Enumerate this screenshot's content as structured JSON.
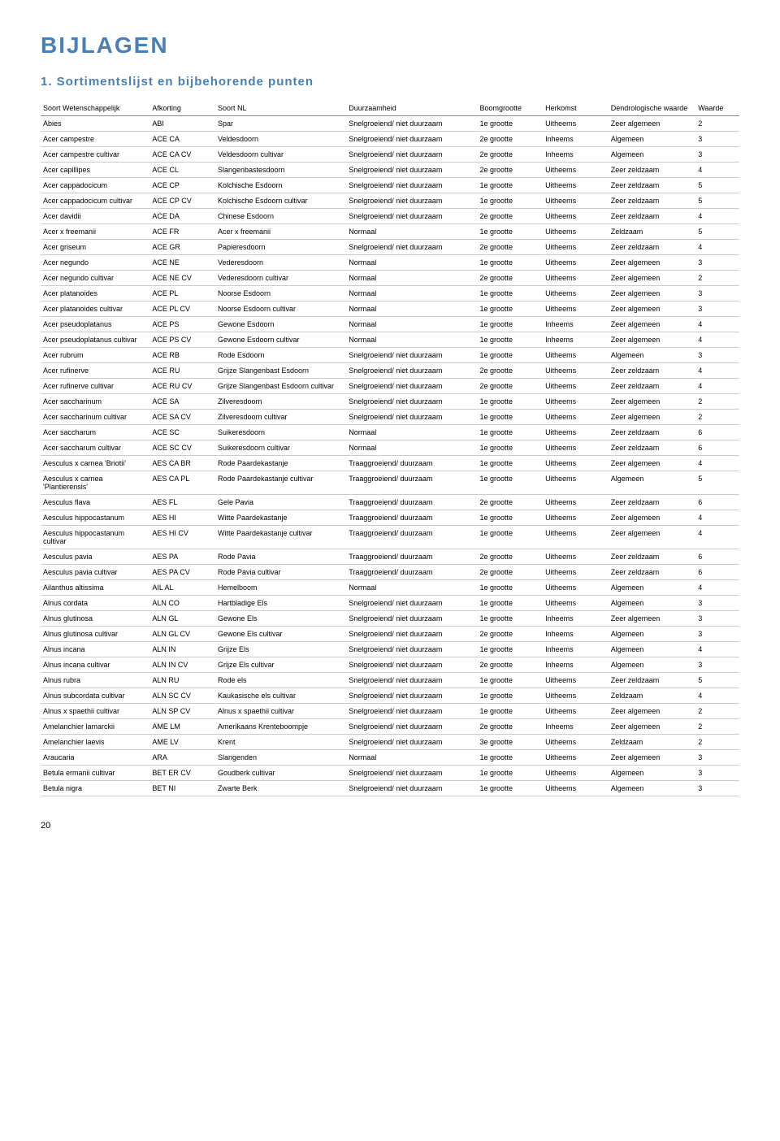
{
  "title": "BIJLAGEN",
  "subtitle": "1. Sortimentslijst en bijbehorende punten",
  "pageNumber": "20",
  "table": {
    "columns": [
      "Soort Wetenschappelijk",
      "Afkorting",
      "Soort NL",
      "Duurzaamheid",
      "Boomgrootte",
      "Herkomst",
      "Dendrologische waarde",
      "Waarde"
    ],
    "rows": [
      [
        "Abies",
        "ABI",
        "Spar",
        "Snelgroeiend/ niet duurzaam",
        "1e grootte",
        "Uitheems",
        "Zeer algemeen",
        "2"
      ],
      [
        "Acer campestre",
        "ACE CA",
        "Veldesdoorn",
        "Snelgroeiend/ niet duurzaam",
        "2e grootte",
        "Inheems",
        "Algemeen",
        "3"
      ],
      [
        "Acer campestre cultivar",
        "ACE CA CV",
        "Veldesdoorn cultivar",
        "Snelgroeiend/ niet duurzaam",
        "2e grootte",
        "Inheems",
        "Algemeen",
        "3"
      ],
      [
        "Acer capillipes",
        "ACE CL",
        "Slangenbastesdoorn",
        "Snelgroeiend/ niet duurzaam",
        "2e grootte",
        "Uitheems",
        "Zeer zeldzaam",
        "4"
      ],
      [
        "Acer cappadocicum",
        "ACE CP",
        "Kolchische Esdoorn",
        "Snelgroeiend/ niet duurzaam",
        "1e grootte",
        "Uitheems",
        "Zeer zeldzaam",
        "5"
      ],
      [
        "Acer cappadocicum cultivar",
        "ACE CP CV",
        "Kolchische Esdoorn cultivar",
        "Snelgroeiend/ niet duurzaam",
        "1e grootte",
        "Uitheems",
        "Zeer zeldzaam",
        "5"
      ],
      [
        "Acer davidii",
        "ACE DA",
        "Chinese Esdoorn",
        "Snelgroeiend/ niet duurzaam",
        "2e grootte",
        "Uitheems",
        "Zeer zeldzaam",
        "4"
      ],
      [
        "Acer x freemanii",
        "ACE FR",
        "Acer x freemanii",
        "Normaal",
        "1e grootte",
        "Uitheems",
        "Zeldzaam",
        "5"
      ],
      [
        "Acer griseum",
        "ACE GR",
        "Papieresdoorn",
        "Snelgroeiend/ niet duurzaam",
        "2e grootte",
        "Uitheems",
        "Zeer zeldzaam",
        "4"
      ],
      [
        "Acer negundo",
        "ACE NE",
        "Vederesdoorn",
        "Normaal",
        "1e grootte",
        "Uitheems",
        "Zeer algemeen",
        "3"
      ],
      [
        "Acer negundo cultivar",
        "ACE NE CV",
        "Vederesdoorn cultivar",
        "Normaal",
        "2e grootte",
        "Uitheems",
        "Zeer algemeen",
        "2"
      ],
      [
        "Acer platanoides",
        "ACE PL",
        "Noorse Esdoorn",
        "Normaal",
        "1e grootte",
        "Uitheems",
        "Zeer algemeen",
        "3"
      ],
      [
        "Acer platanoides cultivar",
        "ACE PL CV",
        "Noorse Esdoorn cultivar",
        "Normaal",
        "1e grootte",
        "Uitheems",
        "Zeer algemeen",
        "3"
      ],
      [
        "Acer pseudoplatanus",
        "ACE PS",
        "Gewone Esdoorn",
        "Normaal",
        "1e grootte",
        "Inheems",
        "Zeer algemeen",
        "4"
      ],
      [
        "Acer pseudoplatanus cultivar",
        "ACE PS CV",
        "Gewone Esdoorn cultivar",
        "Normaal",
        "1e grootte",
        "Inheems",
        "Zeer algemeen",
        "4"
      ],
      [
        "Acer rubrum",
        "ACE RB",
        "Rode Esdoorn",
        "Snelgroeiend/ niet duurzaam",
        "1e grootte",
        "Uitheems",
        "Algemeen",
        "3"
      ],
      [
        "Acer rufinerve",
        "ACE RU",
        "Grijze Slangenbast Esdoorn",
        "Snelgroeiend/ niet duurzaam",
        "2e grootte",
        "Uitheems",
        "Zeer zeldzaam",
        "4"
      ],
      [
        "Acer rufinerve cultivar",
        "ACE RU CV",
        "Grijze Slangenbast Esdoorn cultivar",
        "Snelgroeiend/ niet duurzaam",
        "2e grootte",
        "Uitheems",
        "Zeer zeldzaam",
        "4"
      ],
      [
        "Acer saccharinum",
        "ACE SA",
        "Zilveresdoorn",
        "Snelgroeiend/ niet duurzaam",
        "1e grootte",
        "Uitheems",
        "Zeer algemeen",
        "2"
      ],
      [
        "Acer saccharinum cultivar",
        "ACE SA CV",
        "Zilveresdoorn cultivar",
        "Snelgroeiend/ niet duurzaam",
        "1e grootte",
        "Uitheems",
        "Zeer algemeen",
        "2"
      ],
      [
        "Acer saccharum",
        "ACE SC",
        "Suikeresdoorn",
        "Normaal",
        "1e grootte",
        "Uitheems",
        "Zeer zeldzaam",
        "6"
      ],
      [
        "Acer saccharum cultivar",
        "ACE SC CV",
        "Suikeresdoorn cultivar",
        "Normaal",
        "1e grootte",
        "Uitheems",
        "Zeer zeldzaam",
        "6"
      ],
      [
        "Aesculus x carnea 'Briotii'",
        "AES CA BR",
        "Rode Paardekastanje",
        "Traaggroeiend/ duurzaam",
        "1e grootte",
        "Uitheems",
        "Zeer algemeen",
        "4"
      ],
      [
        "Aesculus x carnea 'Plantierensis'",
        "AES CA PL",
        "Rode Paardekastanje cultivar",
        "Traaggroeiend/ duurzaam",
        "1e grootte",
        "Uitheems",
        "Algemeen",
        "5"
      ],
      [
        "Aesculus flava",
        "AES FL",
        "Gele Pavia",
        "Traaggroeiend/ duurzaam",
        "2e grootte",
        "Uitheems",
        "Zeer zeldzaam",
        "6"
      ],
      [
        "Aesculus hippocastanum",
        "AES HI",
        "Witte Paardekastanje",
        "Traaggroeiend/ duurzaam",
        "1e grootte",
        "Uitheems",
        "Zeer algemeen",
        "4"
      ],
      [
        "Aesculus hippocastanum cultivar",
        "AES HI CV",
        "Witte Paardekastanje cultivar",
        "Traaggroeiend/ duurzaam",
        "1e grootte",
        "Uitheems",
        "Zeer algemeen",
        "4"
      ],
      [
        "Aesculus pavia",
        "AES PA",
        "Rode Pavia",
        "Traaggroeiend/ duurzaam",
        "2e grootte",
        "Uitheems",
        "Zeer zeldzaam",
        "6"
      ],
      [
        "Aesculus pavia cultivar",
        "AES PA CV",
        "Rode Pavia cultivar",
        "Traaggroeiend/ duurzaam",
        "2e grootte",
        "Uitheems",
        "Zeer zeldzaam",
        "6"
      ],
      [
        "Ailanthus altissima",
        "AIL AL",
        "Hemelboom",
        "Normaal",
        "1e grootte",
        "Uitheems",
        "Algemeen",
        "4"
      ],
      [
        "Alnus cordata",
        "ALN CO",
        "Hartbladige Els",
        "Snelgroeiend/ niet duurzaam",
        "1e grootte",
        "Uitheems",
        "Algemeen",
        "3"
      ],
      [
        "Alnus glutinosa",
        "ALN GL",
        "Gewone Els",
        "Snelgroeiend/ niet duurzaam",
        "1e grootte",
        "Inheems",
        "Zeer algemeen",
        "3"
      ],
      [
        "Alnus glutinosa cultivar",
        "ALN GL CV",
        "Gewone Els cultivar",
        "Snelgroeiend/ niet duurzaam",
        "2e grootte",
        "Inheems",
        "Algemeen",
        "3"
      ],
      [
        "Alnus incana",
        "ALN IN",
        "Grijze Els",
        "Snelgroeiend/ niet duurzaam",
        "1e grootte",
        "Inheems",
        "Algemeen",
        "4"
      ],
      [
        "Alnus incana cultivar",
        "ALN IN CV",
        "Grijze Els cultivar",
        "Snelgroeiend/ niet duurzaam",
        "2e grootte",
        "Inheems",
        "Algemeen",
        "3"
      ],
      [
        "Alnus rubra",
        "ALN RU",
        "Rode els",
        "Snelgroeiend/ niet duurzaam",
        "1e grootte",
        "Uitheems",
        "Zeer zeldzaam",
        "5"
      ],
      [
        "Alnus subcordata cultivar",
        "ALN SC CV",
        "Kaukasische els cultivar",
        "Snelgroeiend/ niet duurzaam",
        "1e grootte",
        "Uitheems",
        "Zeldzaam",
        "4"
      ],
      [
        "Alnus x spaethii cultivar",
        "ALN SP CV",
        "Alnus x spaethii cultivar",
        "Snelgroeiend/ niet duurzaam",
        "1e grootte",
        "Uitheems",
        "Zeer algemeen",
        "2"
      ],
      [
        "Amelanchier lamarckii",
        "AME LM",
        "Amerikaans Krenteboompje",
        "Snelgroeiend/ niet duurzaam",
        "2e grootte",
        "Inheems",
        "Zeer algemeen",
        "2"
      ],
      [
        "Amelanchier laevis",
        "AME LV",
        "Krent",
        "Snelgroeiend/ niet duurzaam",
        "3e grootte",
        "Uitheems",
        "Zeldzaam",
        "2"
      ],
      [
        "Araucaria",
        "ARA",
        "Slangenden",
        "Normaal",
        "1e grootte",
        "Uitheems",
        "Zeer algemeen",
        "3"
      ],
      [
        "Betula ermanii cultivar",
        "BET ER CV",
        "Goudberk cultivar",
        "Snelgroeiend/ niet duurzaam",
        "1e grootte",
        "Uitheems",
        "Algemeen",
        "3"
      ],
      [
        "Betula nigra",
        "BET NI",
        "Zwarte Berk",
        "Snelgroeiend/ niet duurzaam",
        "1e grootte",
        "Uitheems",
        "Algemeen",
        "3"
      ]
    ]
  }
}
